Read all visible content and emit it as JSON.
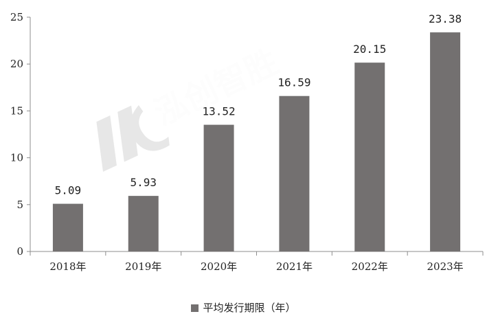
{
  "chart_data": {
    "type": "bar",
    "categories": [
      "2018年",
      "2019年",
      "2020年",
      "2021年",
      "2022年",
      "2023年"
    ],
    "series": [
      {
        "name": "平均发行期限（年）",
        "values": [
          5.09,
          5.93,
          13.52,
          16.59,
          20.15,
          23.38
        ]
      }
    ],
    "data_labels": [
      "5.09",
      "5.93",
      "13.52",
      "16.59",
      "20.15",
      "23.38"
    ],
    "yticks": [
      "0",
      "5",
      "10",
      "15",
      "20",
      "25"
    ],
    "ylim": [
      0,
      25
    ],
    "grid": false,
    "legend_position": "bottom",
    "colors": {
      "bar": "#737070",
      "axis": "#8c8c8c"
    }
  },
  "watermark": {
    "text": "泓创智胜"
  }
}
